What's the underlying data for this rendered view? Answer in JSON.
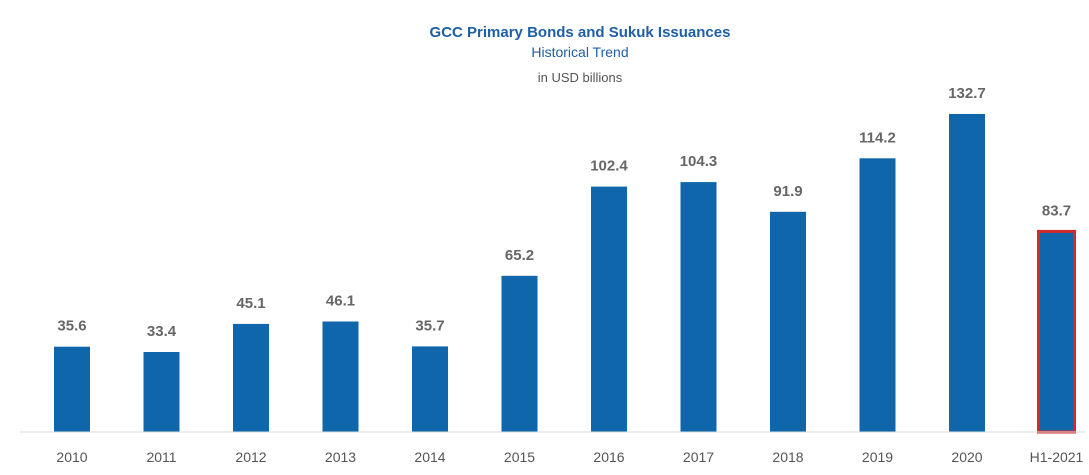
{
  "chart_data": {
    "type": "bar",
    "title": "GCC Primary Bonds and Sukuk Issuances",
    "subtitle": "Historical Trend",
    "unit_label": "in USD billions",
    "categories": [
      "2010",
      "2011",
      "2012",
      "2013",
      "2014",
      "2015",
      "2016",
      "2017",
      "2018",
      "2019",
      "2020",
      "H1-2021"
    ],
    "values": [
      35.6,
      33.4,
      45.1,
      46.1,
      35.7,
      65.2,
      102.4,
      104.3,
      91.9,
      114.2,
      132.7,
      83.7
    ],
    "value_labels": [
      "35.6",
      "33.4",
      "45.1",
      "46.1",
      "35.7",
      "65.2",
      "102.4",
      "104.3",
      "91.9",
      "114.2",
      "132.7",
      "83.7"
    ],
    "highlighted_category": "H1-2021",
    "ylim": [
      0,
      132.7
    ],
    "grid": false,
    "legend": "none",
    "colors": {
      "bar": "#0f66ab",
      "highlight_outline": "#d02a2a",
      "axis": "#d9d9d9"
    }
  }
}
